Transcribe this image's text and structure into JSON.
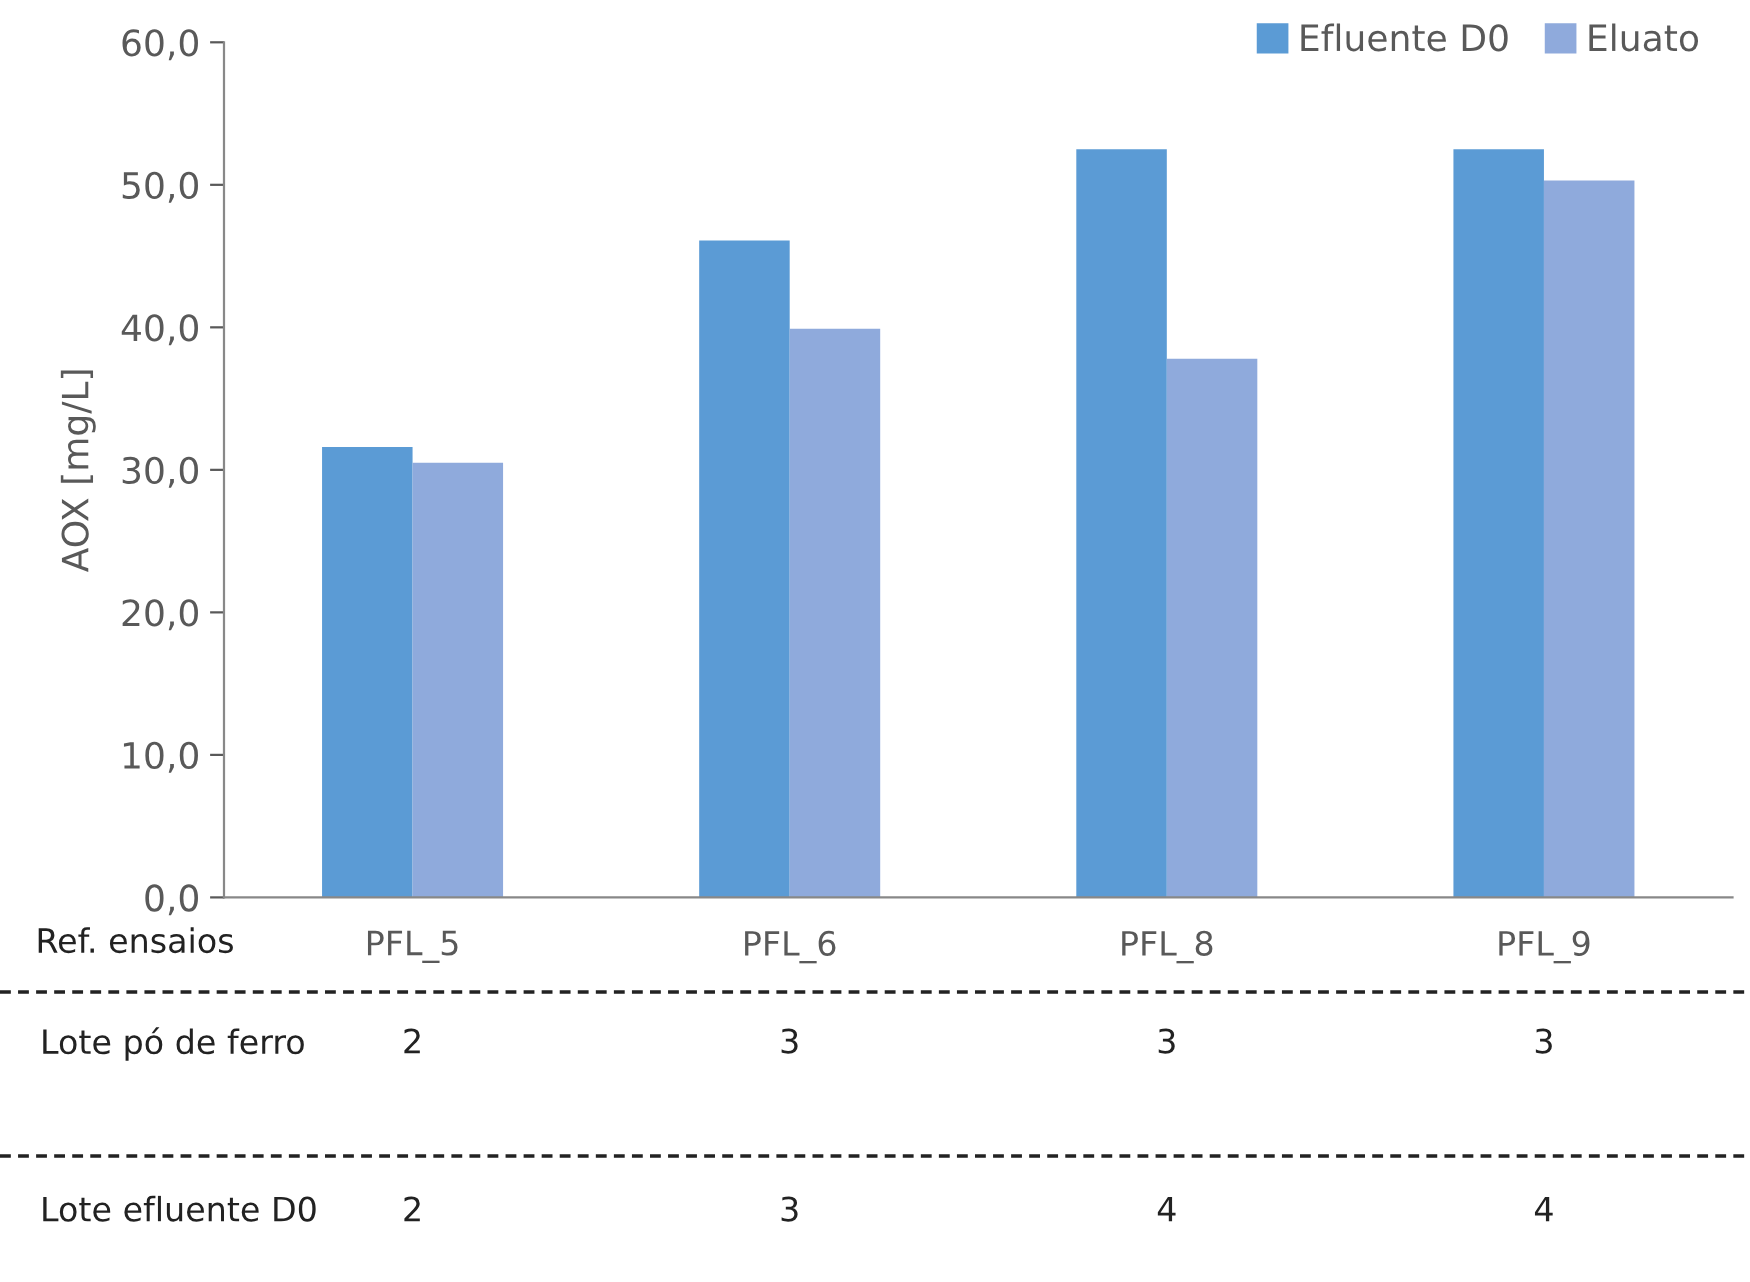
{
  "chart_data": {
    "type": "bar",
    "xlabel": "Ref. ensaios",
    "ylabel": "AOX [mg/L]",
    "categories": [
      "PFL_5",
      "PFL_6",
      "PFL_8",
      "PFL_9"
    ],
    "series": [
      {
        "name": "Efluente D0",
        "color": "#5b9bd5",
        "values": [
          31.6,
          46.1,
          52.5,
          52.5
        ]
      },
      {
        "name": "Eluato",
        "color": "#8faadc",
        "values": [
          30.5,
          39.9,
          37.8,
          50.3
        ]
      }
    ],
    "ylim": [
      0,
      60
    ],
    "yticks": [
      {
        "value": 0,
        "label": "0,0"
      },
      {
        "value": 10,
        "label": "10,0"
      },
      {
        "value": 20,
        "label": "20,0"
      },
      {
        "value": 30,
        "label": "30,0"
      },
      {
        "value": 40,
        "label": "40,0"
      },
      {
        "value": 50,
        "label": "50,0"
      },
      {
        "value": 60,
        "label": "60,0"
      }
    ],
    "grid": false,
    "legend": "top right",
    "annotations": [
      "Lote pó de ferro",
      "2",
      "3",
      "3",
      "3",
      "Lote efluente D0",
      "2",
      "3",
      "4",
      "4"
    ]
  }
}
